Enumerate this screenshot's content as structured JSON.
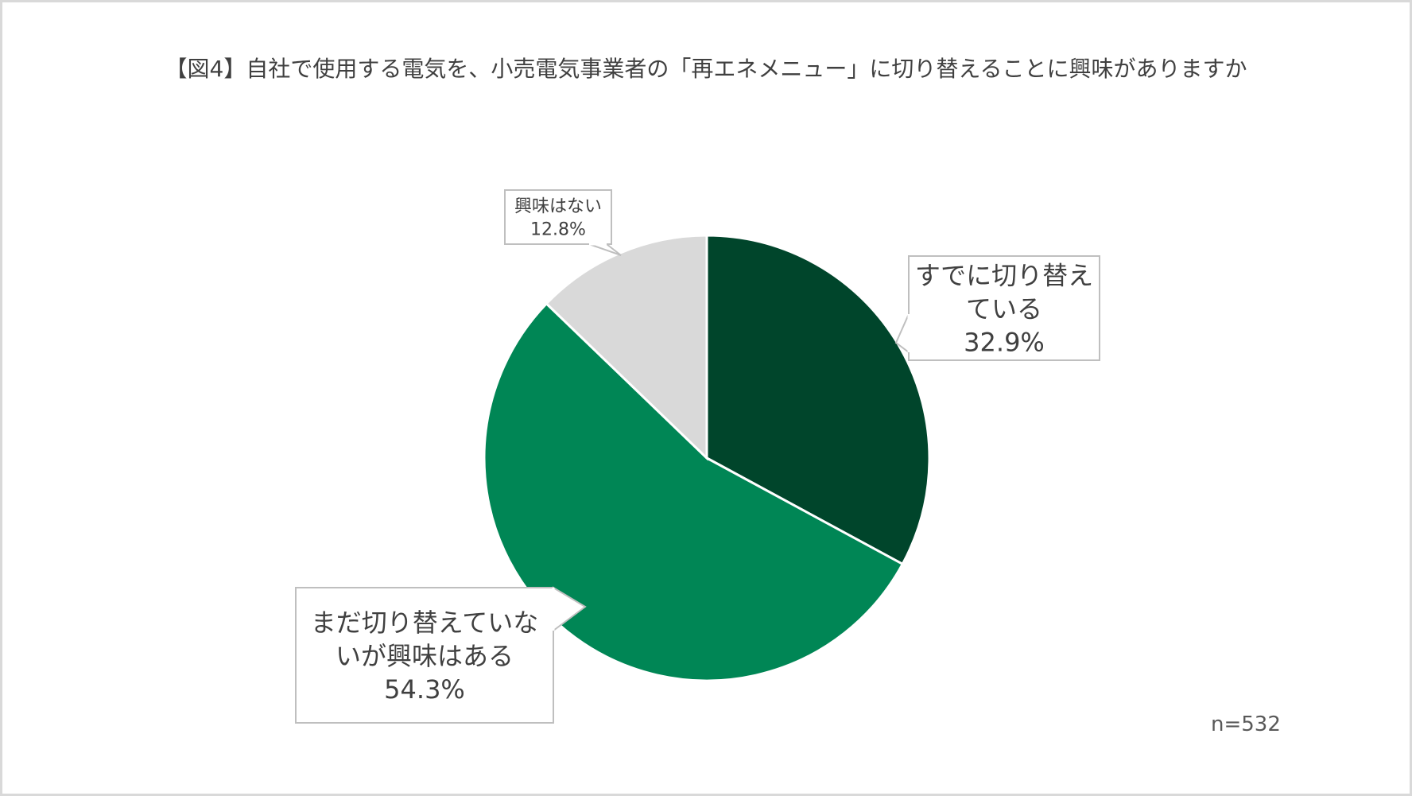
{
  "chart_data": {
    "type": "pie",
    "title": "【図4】自社で使用する電気を、小売電気事業者の「再エネメニュー」に切り替えることに興味がありますか",
    "categories": [
      "すでに切り替えている",
      "まだ切り替えていないが興味はある",
      "興味はない"
    ],
    "values": [
      32.9,
      54.3,
      12.8
    ],
    "unit": "%",
    "data_labels": [
      {
        "lines": [
          "すでに切り替え",
          "ている",
          "32.9%"
        ]
      },
      {
        "lines": [
          "まだ切り替えていな",
          "いが興味はある",
          "54.3%"
        ]
      },
      {
        "lines": [
          "興味はない",
          "12.8%"
        ]
      }
    ],
    "colors": [
      "#00452b",
      "#008655",
      "#d9d9d9"
    ],
    "start_angle": "12 o'clock",
    "direction": "clockwise",
    "legend": "none",
    "note": "n=532"
  }
}
